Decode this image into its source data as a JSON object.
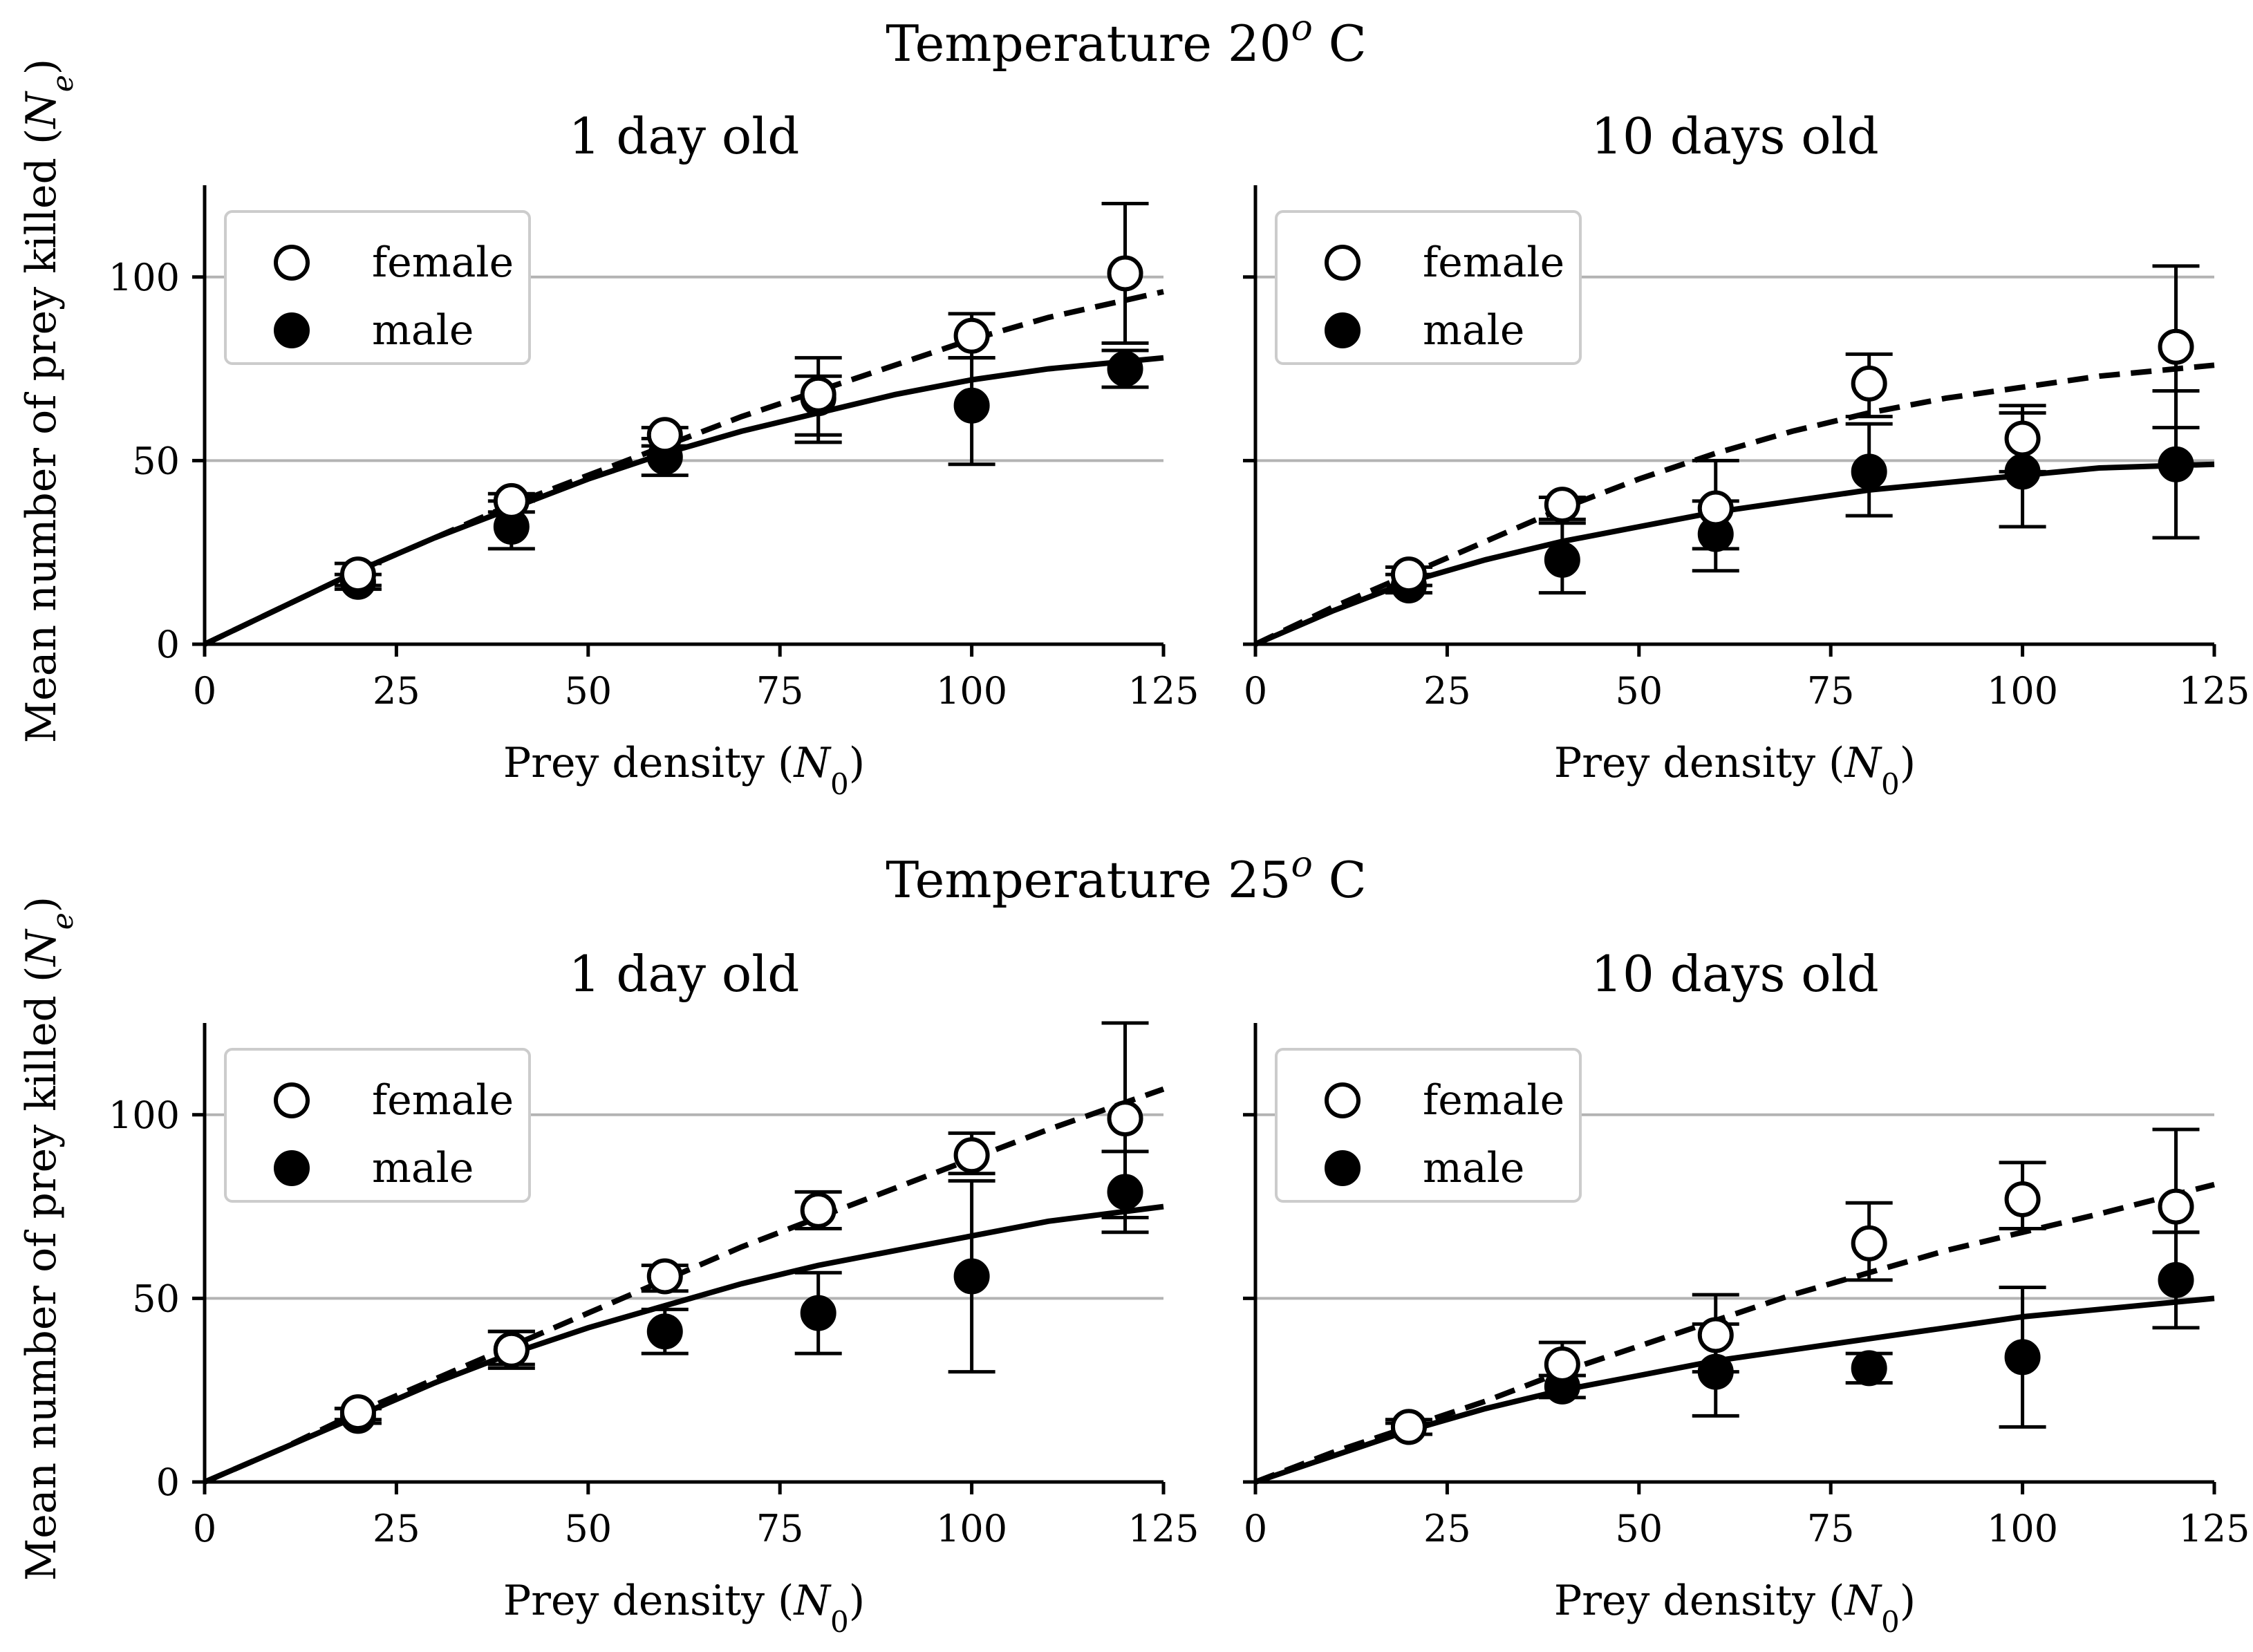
{
  "rows": [
    {
      "title": "Temperature 20",
      "title_sup": "o",
      "title_suffix": " C"
    },
    {
      "title": "Temperature 25",
      "title_sup": "o",
      "title_suffix": " C"
    }
  ],
  "axes_text": {
    "ylabel": "Mean number of prey killed (",
    "ylabel_sym": "N",
    "ylabel_sub": "e",
    "ylabel_end": ")",
    "xlabel": "Prey density (",
    "xlabel_sym": "N",
    "xlabel_sub": "0",
    "xlabel_end": ")"
  },
  "legend": {
    "female": "female",
    "male": "male"
  },
  "chart_data": [
    {
      "type": "scatter",
      "row": 0,
      "col": 0,
      "title": "1 day old",
      "xlim": [
        0,
        125
      ],
      "ylim": [
        0,
        125
      ],
      "xticks": [
        0,
        25,
        50,
        75,
        100,
        125
      ],
      "yticks": [
        0,
        50,
        100
      ],
      "grid": "horizontal",
      "legend_position": "top-left",
      "series": [
        {
          "name": "female",
          "marker": "open-circle",
          "x": [
            20,
            40,
            60,
            80,
            100,
            120
          ],
          "y": [
            19,
            39,
            57,
            68,
            84,
            101
          ],
          "err_low": [
            16,
            36,
            54,
            57,
            78,
            82
          ],
          "err_high": [
            22,
            41,
            59,
            78,
            90,
            120
          ],
          "fit_x": [
            0,
            10,
            20,
            30,
            40,
            50,
            60,
            70,
            80,
            90,
            100,
            110,
            125
          ],
          "fit_y": [
            0,
            10,
            20,
            29,
            38,
            46,
            54,
            62,
            69,
            76,
            83,
            89,
            96
          ],
          "fit_style": "dashed"
        },
        {
          "name": "male",
          "marker": "filled-circle",
          "x": [
            20,
            40,
            60,
            80,
            100,
            120
          ],
          "y": [
            17,
            32,
            51,
            67,
            65,
            75
          ],
          "err_low": [
            15,
            26,
            46,
            55,
            49,
            70
          ],
          "err_high": [
            19,
            39,
            56,
            73,
            78,
            80
          ],
          "fit_x": [
            0,
            10,
            20,
            30,
            40,
            50,
            60,
            70,
            80,
            90,
            100,
            110,
            125
          ],
          "fit_y": [
            0,
            10,
            20,
            29,
            37,
            45,
            52,
            58,
            63,
            68,
            72,
            75,
            78
          ],
          "fit_style": "solid"
        }
      ]
    },
    {
      "type": "scatter",
      "row": 0,
      "col": 1,
      "title": "10 days old",
      "xlim": [
        0,
        125
      ],
      "ylim": [
        0,
        125
      ],
      "xticks": [
        0,
        25,
        50,
        75,
        100,
        125
      ],
      "yticks": [
        0,
        50,
        100
      ],
      "grid": "horizontal",
      "legend_position": "top-left",
      "series": [
        {
          "name": "female",
          "marker": "open-circle",
          "x": [
            20,
            40,
            60,
            80,
            100,
            120
          ],
          "y": [
            19,
            38,
            37,
            71,
            56,
            81
          ],
          "err_low": [
            16,
            34,
            26,
            62,
            47,
            59
          ],
          "err_high": [
            21,
            40,
            50,
            79,
            65,
            103
          ],
          "fit_x": [
            0,
            10,
            20,
            30,
            40,
            50,
            60,
            70,
            80,
            90,
            100,
            110,
            125
          ],
          "fit_y": [
            0,
            10,
            19,
            28,
            37,
            45,
            52,
            58,
            63,
            67,
            70,
            73,
            76
          ],
          "fit_style": "dashed"
        },
        {
          "name": "male",
          "marker": "filled-circle",
          "x": [
            20,
            40,
            60,
            80,
            100,
            120
          ],
          "y": [
            16,
            23,
            30,
            47,
            47,
            49
          ],
          "err_low": [
            14,
            14,
            20,
            35,
            32,
            29
          ],
          "err_high": [
            19,
            33,
            39,
            60,
            63,
            69
          ],
          "fit_x": [
            0,
            10,
            20,
            30,
            40,
            50,
            60,
            70,
            80,
            90,
            100,
            110,
            125
          ],
          "fit_y": [
            0,
            9,
            17,
            23,
            28,
            32,
            36,
            39,
            42,
            44,
            46,
            48,
            49
          ],
          "fit_style": "solid"
        }
      ]
    },
    {
      "type": "scatter",
      "row": 1,
      "col": 0,
      "title": "1 day old",
      "xlim": [
        0,
        125
      ],
      "ylim": [
        0,
        125
      ],
      "xticks": [
        0,
        25,
        50,
        75,
        100,
        125
      ],
      "yticks": [
        0,
        50,
        100
      ],
      "grid": "horizontal",
      "legend_position": "top-left",
      "series": [
        {
          "name": "female",
          "marker": "open-circle",
          "x": [
            20,
            40,
            60,
            80,
            100,
            120
          ],
          "y": [
            19,
            36,
            56,
            74,
            89,
            99
          ],
          "err_low": [
            17,
            32,
            52,
            69,
            84,
            72
          ],
          "err_high": [
            20,
            41,
            59,
            79,
            95,
            125
          ],
          "fit_x": [
            0,
            10,
            20,
            30,
            40,
            50,
            60,
            70,
            80,
            90,
            100,
            110,
            125
          ],
          "fit_y": [
            0,
            9,
            19,
            28,
            37,
            46,
            55,
            64,
            72,
            80,
            88,
            96,
            107
          ],
          "fit_style": "dashed"
        },
        {
          "name": "male",
          "marker": "filled-circle",
          "x": [
            20,
            40,
            60,
            80,
            100,
            120
          ],
          "y": [
            18,
            36,
            41,
            46,
            56,
            79
          ],
          "err_low": [
            16,
            31,
            35,
            35,
            30,
            68
          ],
          "err_high": [
            20,
            41,
            47,
            57,
            82,
            90
          ],
          "fit_x": [
            0,
            10,
            20,
            30,
            40,
            50,
            60,
            70,
            80,
            90,
            100,
            110,
            125
          ],
          "fit_y": [
            0,
            9,
            18,
            27,
            35,
            42,
            48,
            54,
            59,
            63,
            67,
            71,
            75
          ],
          "fit_style": "solid"
        }
      ]
    },
    {
      "type": "scatter",
      "row": 1,
      "col": 1,
      "title": "10 days old",
      "xlim": [
        0,
        125
      ],
      "ylim": [
        0,
        125
      ],
      "xticks": [
        0,
        25,
        50,
        75,
        100,
        125
      ],
      "yticks": [
        0,
        50,
        100
      ],
      "grid": "horizontal",
      "legend_position": "top-left",
      "series": [
        {
          "name": "female",
          "marker": "open-circle",
          "x": [
            20,
            40,
            60,
            80,
            100,
            120
          ],
          "y": [
            15,
            32,
            40,
            65,
            77,
            75
          ],
          "err_low": [
            13,
            29,
            30,
            55,
            69,
            68
          ],
          "err_high": [
            17,
            38,
            51,
            76,
            87,
            96
          ],
          "fit_x": [
            0,
            10,
            20,
            30,
            40,
            50,
            60,
            70,
            80,
            90,
            100,
            110,
            125
          ],
          "fit_y": [
            0,
            8,
            15,
            22,
            30,
            37,
            44,
            51,
            57,
            63,
            68,
            73,
            81
          ],
          "fit_style": "dashed"
        },
        {
          "name": "male",
          "marker": "filled-circle",
          "x": [
            20,
            40,
            60,
            80,
            100,
            120
          ],
          "y": [
            15,
            26,
            30,
            31,
            34,
            55
          ],
          "err_low": [
            13,
            23,
            18,
            27,
            15,
            42
          ],
          "err_high": [
            16,
            29,
            43,
            35,
            53,
            68
          ],
          "fit_x": [
            0,
            10,
            20,
            30,
            40,
            50,
            60,
            70,
            80,
            90,
            100,
            110,
            125
          ],
          "fit_y": [
            0,
            7,
            14,
            20,
            25,
            29,
            33,
            36,
            39,
            42,
            45,
            47,
            50
          ],
          "fit_style": "solid"
        }
      ]
    }
  ]
}
